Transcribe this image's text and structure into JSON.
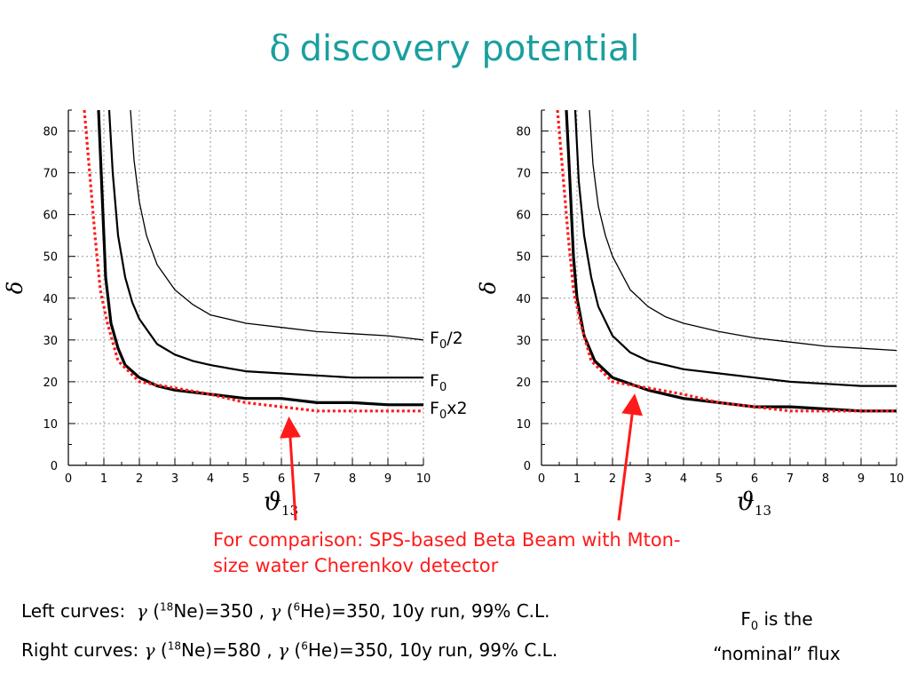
{
  "slide": {
    "title_symbol": "δ",
    "title_text": "discovery potential"
  },
  "colors": {
    "title": "#1a9f9f",
    "comparison": "#ff1a1a",
    "curves": "#000000",
    "grid": "#9a9a9a"
  },
  "labels": {
    "f0_half": {
      "main": "F",
      "sub": "0",
      "rest": "/2"
    },
    "f0": {
      "main": "F",
      "sub": "0",
      "rest": ""
    },
    "f0_double": {
      "main": "F",
      "sub": "0",
      "rest": "x2"
    }
  },
  "comparison_note": {
    "line1": "For comparison: SPS-based Beta Beam with Mton-",
    "line2": "size water Cherenkov detector"
  },
  "conditions": {
    "left": {
      "prefix": "Left curves:",
      "g1": "γ",
      "p1": " (",
      "s1": "18",
      "t1": "Ne)=350 , ",
      "g2": "γ",
      "p2": " (",
      "s2": "6",
      "t2": "He)=350, 10y run, 99% C.L."
    },
    "right": {
      "prefix": "Right curves:",
      "g1": "γ",
      "p1": " (",
      "s1": "18",
      "t1": "Ne)=580 , ",
      "g2": "γ",
      "p2": " (",
      "s2": "6",
      "t2": "He)=350, 10y run, 99% C.L."
    }
  },
  "nominal_note": {
    "f": "F",
    "sub": "0",
    "line1_rest": " is the",
    "line2": "“nominal” flux"
  },
  "chart_data": [
    {
      "type": "line",
      "xlabel": "ϑ",
      "xlabel_sub": "13",
      "ylabel": "δ",
      "xlim": [
        0,
        10
      ],
      "ylim": [
        0,
        85
      ],
      "xticks": [
        "0",
        "1",
        "2",
        "3",
        "4",
        "5",
        "6",
        "7",
        "8",
        "9",
        "10"
      ],
      "yticks": [
        "0",
        "10",
        "20",
        "30",
        "40",
        "50",
        "60",
        "70",
        "80"
      ],
      "grid": true,
      "series": [
        {
          "name": "F0/2",
          "style": "thin",
          "x": [
            1.75,
            1.85,
            2.0,
            2.2,
            2.5,
            3.0,
            3.5,
            4.0,
            5.0,
            6.0,
            7.0,
            8.0,
            9.0,
            10.0
          ],
          "y": [
            85,
            73,
            63,
            55,
            48,
            42,
            38.5,
            36,
            34,
            33,
            32,
            31.5,
            31,
            30
          ]
        },
        {
          "name": "F0",
          "style": "medium",
          "x": [
            1.15,
            1.25,
            1.4,
            1.6,
            1.8,
            2.0,
            2.5,
            3.0,
            3.5,
            4.0,
            5.0,
            6.0,
            7.0,
            8.0,
            9.0,
            10.0
          ],
          "y": [
            85,
            70,
            55,
            45,
            39,
            35,
            29,
            26.5,
            25,
            24,
            22.5,
            22,
            21.5,
            21,
            21,
            21
          ]
        },
        {
          "name": "F0x2",
          "style": "thick",
          "x": [
            0.85,
            0.95,
            1.05,
            1.2,
            1.4,
            1.6,
            2.0,
            2.5,
            3.0,
            4.0,
            5.0,
            6.0,
            7.0,
            8.0,
            9.0,
            10.0
          ],
          "y": [
            85,
            65,
            45,
            34,
            28,
            24,
            21,
            19,
            18,
            17,
            16,
            16,
            15,
            15,
            14.5,
            14.5
          ]
        },
        {
          "name": "SPS",
          "style": "dotted-red",
          "x": [
            0.45,
            0.6,
            0.75,
            0.9,
            1.1,
            1.4,
            2.0,
            3.0,
            4.0,
            5.0,
            6.0,
            7.0,
            8.0,
            9.0,
            10.0
          ],
          "y": [
            85,
            70,
            55,
            42,
            34,
            25,
            20,
            18.5,
            17,
            15,
            14,
            13,
            13,
            13,
            13
          ]
        }
      ]
    },
    {
      "type": "line",
      "xlabel": "ϑ",
      "xlabel_sub": "13",
      "ylabel": "δ",
      "xlim": [
        0,
        10
      ],
      "ylim": [
        0,
        85
      ],
      "xticks": [
        "0",
        "1",
        "2",
        "3",
        "4",
        "5",
        "6",
        "7",
        "8",
        "9",
        "10"
      ],
      "yticks": [
        "0",
        "10",
        "20",
        "30",
        "40",
        "50",
        "60",
        "70",
        "80"
      ],
      "grid": true,
      "series": [
        {
          "name": "F0/2",
          "style": "thin",
          "x": [
            1.35,
            1.45,
            1.6,
            1.8,
            2.0,
            2.5,
            3.0,
            3.5,
            4.0,
            5.0,
            6.0,
            7.0,
            8.0,
            9.0,
            10.0
          ],
          "y": [
            85,
            72,
            62,
            55,
            50,
            42,
            38,
            35.5,
            34,
            32,
            30.5,
            29.5,
            28.5,
            28,
            27.5
          ]
        },
        {
          "name": "F0",
          "style": "medium",
          "x": [
            0.95,
            1.05,
            1.2,
            1.4,
            1.6,
            2.0,
            2.5,
            3.0,
            3.5,
            4.0,
            5.0,
            6.0,
            7.0,
            8.0,
            9.0,
            10.0
          ],
          "y": [
            85,
            68,
            55,
            45,
            38,
            31,
            27,
            25,
            24,
            23,
            22,
            21,
            20,
            19.5,
            19,
            19
          ]
        },
        {
          "name": "F0x2",
          "style": "thick",
          "x": [
            0.7,
            0.8,
            0.9,
            1.0,
            1.2,
            1.5,
            2.0,
            2.5,
            3.0,
            4.0,
            5.0,
            6.0,
            7.0,
            8.0,
            9.0,
            10.0
          ],
          "y": [
            85,
            68,
            50,
            40,
            31,
            25,
            21,
            19.5,
            18,
            16,
            15,
            14,
            14,
            13.5,
            13,
            13
          ]
        },
        {
          "name": "SPS",
          "style": "dotted-red",
          "x": [
            0.45,
            0.6,
            0.75,
            0.9,
            1.1,
            1.4,
            2.0,
            3.0,
            4.0,
            5.0,
            6.0,
            7.0,
            8.0,
            9.0,
            10.0
          ],
          "y": [
            85,
            70,
            55,
            42,
            34,
            25,
            20,
            18.5,
            17,
            15,
            14,
            13,
            13,
            13,
            13
          ]
        }
      ]
    }
  ]
}
